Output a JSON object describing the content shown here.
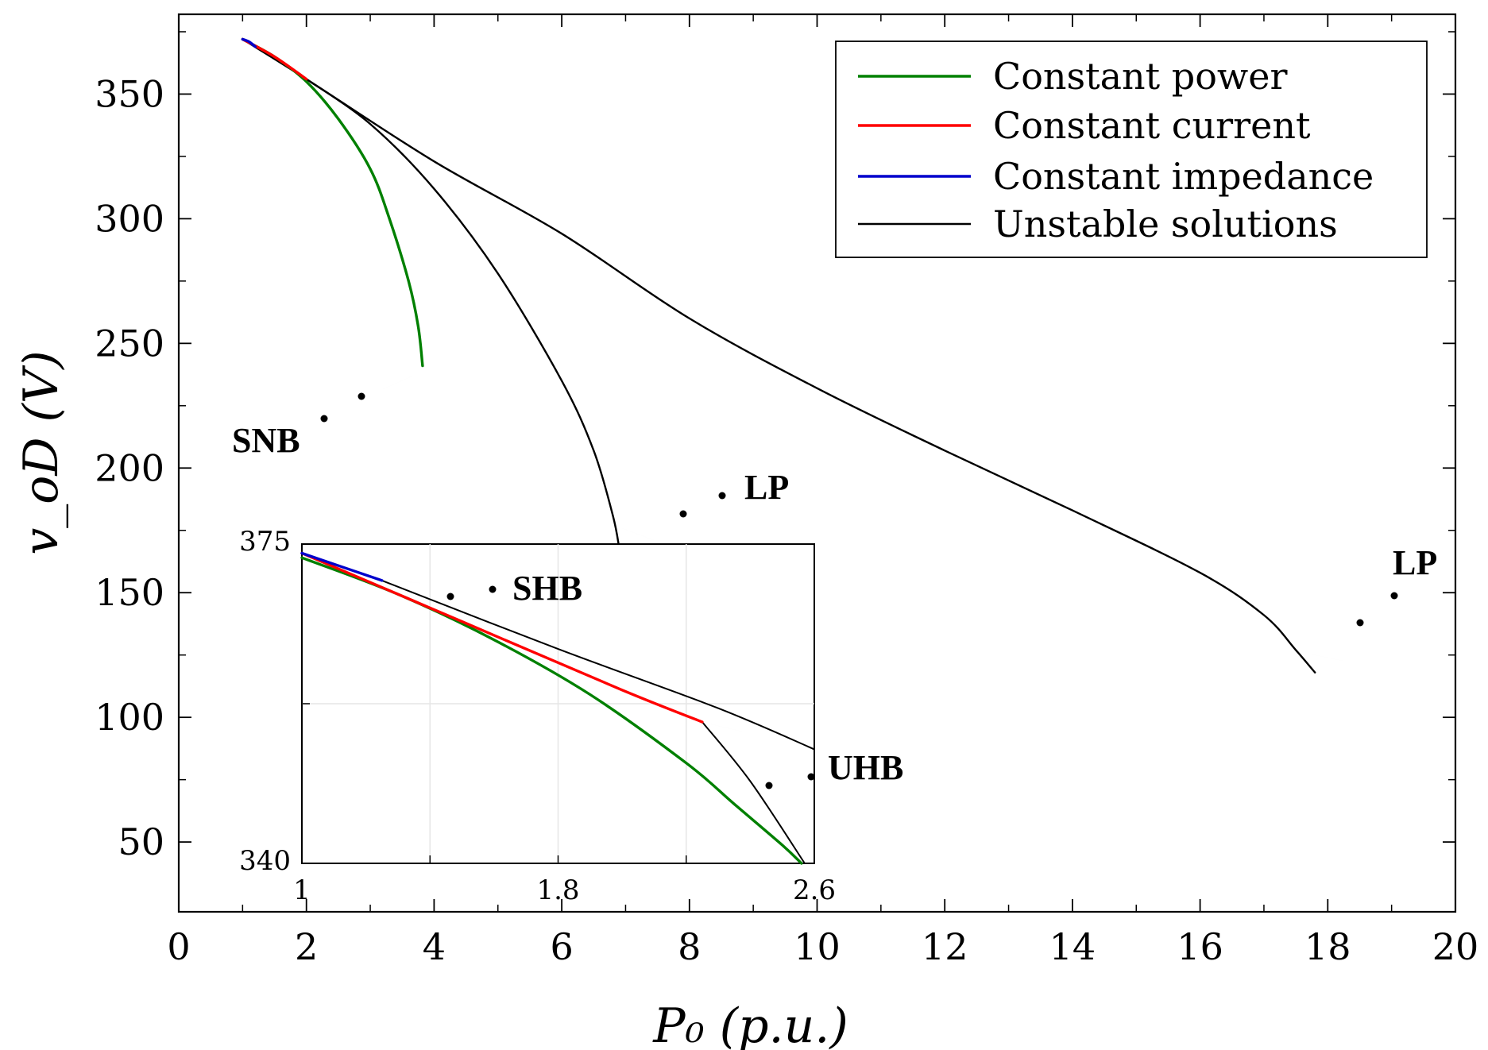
{
  "chart_data": {
    "type": "line",
    "title": "",
    "xlabel": "P₀ (p.u.)",
    "ylabel": "v_oD (V)",
    "xlim": [
      0,
      20
    ],
    "ylim": [
      22,
      382
    ],
    "xticks": [
      0,
      2,
      4,
      6,
      8,
      10,
      12,
      14,
      16,
      18,
      20
    ],
    "yticks": [
      50,
      100,
      150,
      200,
      250,
      300,
      350
    ],
    "grid": false,
    "legend_position": "top-right",
    "series": [
      {
        "name": "Constant power",
        "color": "#008000",
        "points": [
          [
            1,
            372
          ],
          [
            1.5,
            365
          ],
          [
            2,
            355
          ],
          [
            2.5,
            340
          ],
          [
            3,
            320
          ],
          [
            3.3,
            300
          ],
          [
            3.6,
            275
          ],
          [
            3.75,
            257
          ],
          [
            3.82,
            241
          ]
        ]
      },
      {
        "name": "Constant current",
        "color": "#ff0000",
        "points": [
          [
            1,
            372
          ],
          [
            1.5,
            365
          ],
          [
            2,
            356
          ]
        ]
      },
      {
        "name": "Constant impedance",
        "color": "#0000cc",
        "points": [
          [
            1,
            372
          ],
          [
            1.1,
            371
          ],
          [
            1.2,
            369
          ]
        ]
      },
      {
        "name": "Unstable solutions",
        "color": "#000000",
        "curves": [
          [
            [
              2,
              356
            ],
            [
              3,
              338
            ],
            [
              4,
              312
            ],
            [
              5,
              278
            ],
            [
              6,
              235
            ],
            [
              6.5,
              207
            ],
            [
              6.8,
              181
            ],
            [
              6.9,
              168
            ]
          ],
          [
            [
              1,
              372
            ],
            [
              2,
              356
            ],
            [
              4,
              323
            ],
            [
              6,
              294
            ],
            [
              8,
              260
            ],
            [
              10,
              232
            ],
            [
              12,
              207
            ],
            [
              14,
              183
            ],
            [
              16,
              158
            ],
            [
              17,
              141
            ],
            [
              17.5,
              127
            ],
            [
              17.8,
              118
            ]
          ]
        ]
      }
    ],
    "annotations": [
      {
        "text": "SNB",
        "x": 2.3,
        "y": 218
      },
      {
        "text": "LP",
        "x": 8.4,
        "y": 187
      },
      {
        "text": "LP",
        "x": 19,
        "y": 147
      },
      {
        "text": "SHB",
        "inset": true
      },
      {
        "text": "UHB",
        "inset": true
      }
    ],
    "inset": {
      "xlim": [
        1,
        2.6
      ],
      "ylim": [
        340,
        375
      ],
      "xtick_labels": [
        "1",
        "1.8",
        "2.6"
      ],
      "ytick_labels": [
        "375",
        "340"
      ],
      "series": [
        {
          "name": "Constant power",
          "color": "#008000",
          "points": [
            [
              1,
              373.5
            ],
            [
              1.3,
              369.5
            ],
            [
              1.6,
              364.5
            ],
            [
              1.9,
              358.5
            ],
            [
              2.2,
              351
            ],
            [
              2.35,
              346.5
            ],
            [
              2.5,
              342
            ],
            [
              2.56,
              340
            ]
          ]
        },
        {
          "name": "Constant current",
          "color": "#ff0000",
          "points": [
            [
              1,
              374
            ],
            [
              1.5,
              366.5
            ],
            [
              2,
              359
            ],
            [
              2.25,
              355.5
            ]
          ]
        },
        {
          "name": "Constant impedance",
          "color": "#0000cc",
          "points": [
            [
              1,
              374
            ],
            [
              1.25,
              371
            ]
          ]
        },
        {
          "name": "Unstable solutions",
          "color": "#000000",
          "curves": [
            [
              [
                1.25,
                371
              ],
              [
                1.8,
                363.5
              ],
              [
                2.3,
                357
              ],
              [
                2.6,
                352.5
              ]
            ],
            [
              [
                2.25,
                355.5
              ],
              [
                2.4,
                349
              ],
              [
                2.57,
                340
              ]
            ]
          ]
        }
      ]
    }
  }
}
